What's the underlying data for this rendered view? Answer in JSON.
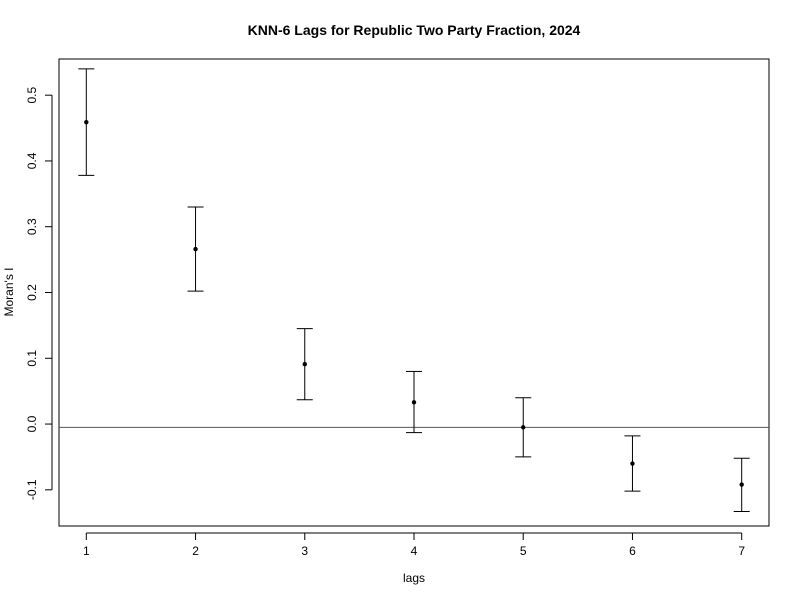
{
  "chart_data": {
    "type": "scatter",
    "title": "KNN-6 Lags for Republic Two Party Fraction, 2024",
    "xlabel": "lags",
    "ylabel": "Moran's  I",
    "x": [
      1,
      2,
      3,
      4,
      5,
      6,
      7
    ],
    "y": [
      0.459,
      0.266,
      0.091,
      0.033,
      -0.005,
      -0.06,
      -0.092
    ],
    "y_lower": [
      0.378,
      0.202,
      0.037,
      -0.013,
      -0.05,
      -0.102,
      -0.133
    ],
    "y_upper": [
      0.54,
      0.33,
      0.145,
      0.08,
      0.04,
      -0.018,
      -0.052
    ],
    "reference_line_y": -0.005,
    "xlim": [
      0.75,
      7.25
    ],
    "ylim": [
      -0.155,
      0.555
    ],
    "x_ticks": [
      "1",
      "2",
      "3",
      "4",
      "5",
      "6",
      "7"
    ],
    "y_ticks": [
      "-0.1",
      "0.0",
      "0.1",
      "0.2",
      "0.3",
      "0.4",
      "0.5"
    ],
    "grid": false,
    "legend": "none"
  }
}
